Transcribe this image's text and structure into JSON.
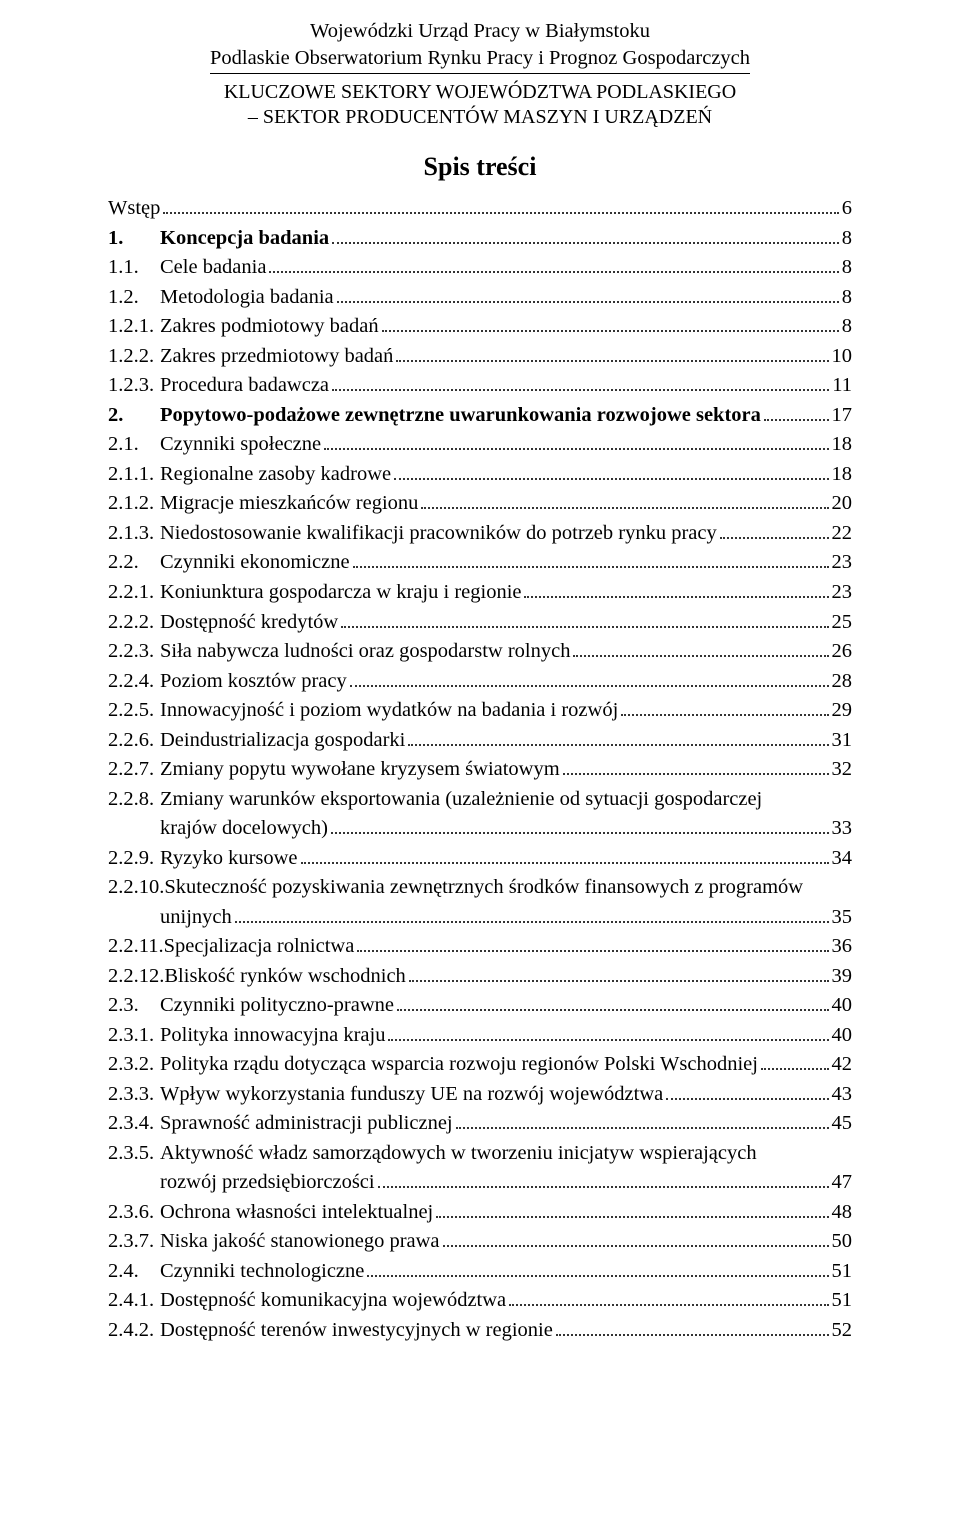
{
  "header": {
    "line1": "Wojewódzki Urząd Pracy w Białymstoku",
    "line2": "Podlaskie Obserwatorium Rynku Pracy i Prognoz Gospodarczych",
    "sub1": "KLUCZOWE SEKTORY WOJEWÓDZTWA PODLASKIEGO",
    "sub2": "– SEKTOR PRODUCENTÓW MASZYN I URZĄDZEŃ"
  },
  "title": "Spis treści",
  "toc": [
    {
      "label": "",
      "text": "Wstęp",
      "page": "6",
      "bold": false
    },
    {
      "label": "1.",
      "text": "Koncepcja badania",
      "page": "8",
      "bold": true
    },
    {
      "label": "1.1.",
      "text": "Cele badania",
      "page": "8",
      "bold": false
    },
    {
      "label": "1.2.",
      "text": "Metodologia badania",
      "page": "8",
      "bold": false
    },
    {
      "label": "1.2.1.",
      "text": "Zakres podmiotowy badań",
      "page": "8",
      "bold": false
    },
    {
      "label": "1.2.2.",
      "text": "Zakres przedmiotowy badań",
      "page": "10",
      "bold": false
    },
    {
      "label": "1.2.3.",
      "text": "Procedura badawcza",
      "page": "11",
      "bold": false
    },
    {
      "label": "2.",
      "text": "Popytowo-podażowe zewnętrzne uwarunkowania rozwojowe sektora",
      "page": "17",
      "bold": true
    },
    {
      "label": "2.1.",
      "text": "Czynniki społeczne",
      "page": "18",
      "bold": false
    },
    {
      "label": "2.1.1.",
      "text": "Regionalne zasoby kadrowe",
      "page": "18",
      "bold": false
    },
    {
      "label": "2.1.2.",
      "text": "Migracje mieszkańców regionu",
      "page": "20",
      "bold": false
    },
    {
      "label": "2.1.3.",
      "text": "Niedostosowanie kwalifikacji pracowników do potrzeb rynku pracy",
      "page": "22",
      "bold": false
    },
    {
      "label": "2.2.",
      "text": "Czynniki ekonomiczne",
      "page": "23",
      "bold": false
    },
    {
      "label": "2.2.1.",
      "text": "Koniunktura gospodarcza w kraju i regionie",
      "page": "23",
      "bold": false
    },
    {
      "label": "2.2.2.",
      "text": "Dostępność kredytów",
      "page": "25",
      "bold": false
    },
    {
      "label": "2.2.3.",
      "text": "Siła nabywcza ludności oraz gospodarstw rolnych",
      "page": "26",
      "bold": false
    },
    {
      "label": "2.2.4.",
      "text": "Poziom kosztów pracy",
      "page": "28",
      "bold": false
    },
    {
      "label": "2.2.5.",
      "text": "Innowacyjność i poziom wydatków na badania i rozwój",
      "page": "29",
      "bold": false
    },
    {
      "label": "2.2.6.",
      "text": "Deindustrializacja gospodarki",
      "page": "31",
      "bold": false
    },
    {
      "label": "2.2.7.",
      "text": "Zmiany popytu wywołane kryzysem światowym",
      "page": "32",
      "bold": false
    },
    {
      "label": "2.2.8.",
      "text": "Zmiany warunków eksportowania (uzależnienie od sytuacji gospodarczej",
      "page": "",
      "bold": false,
      "noleader": true
    },
    {
      "label": "",
      "text": "krajów docelowych)",
      "page": "33",
      "bold": false,
      "continuation": true
    },
    {
      "label": "2.2.9.",
      "text": "Ryzyko kursowe",
      "page": "34",
      "bold": false
    },
    {
      "label": "2.2.10.",
      "text": "Skuteczność pozyskiwania zewnętrznych środków finansowych z programów",
      "page": "",
      "bold": false,
      "noleader": true
    },
    {
      "label": "",
      "text": "unijnych",
      "page": "35",
      "bold": false,
      "continuation": true
    },
    {
      "label": "2.2.11.",
      "text": "Specjalizacja rolnictwa",
      "page": "36",
      "bold": false
    },
    {
      "label": "2.2.12.",
      "text": "Bliskość rynków wschodnich",
      "page": "39",
      "bold": false
    },
    {
      "label": "2.3.",
      "text": "Czynniki polityczno-prawne",
      "page": "40",
      "bold": false
    },
    {
      "label": "2.3.1.",
      "text": "Polityka innowacyjna kraju",
      "page": "40",
      "bold": false
    },
    {
      "label": "2.3.2.",
      "text": "Polityka rządu dotycząca wsparcia rozwoju regionów Polski Wschodniej",
      "page": "42",
      "bold": false
    },
    {
      "label": "2.3.3.",
      "text": "Wpływ wykorzystania funduszy UE na rozwój województwa",
      "page": "43",
      "bold": false
    },
    {
      "label": "2.3.4.",
      "text": "Sprawność administracji publicznej",
      "page": "45",
      "bold": false
    },
    {
      "label": "2.3.5.",
      "text": "Aktywność władz samorządowych w tworzeniu inicjatyw wspierających",
      "page": "",
      "bold": false,
      "noleader": true
    },
    {
      "label": "",
      "text": "rozwój przedsiębiorczości",
      "page": "47",
      "bold": false,
      "continuation": true
    },
    {
      "label": "2.3.6.",
      "text": "Ochrona własności intelektualnej",
      "page": "48",
      "bold": false
    },
    {
      "label": "2.3.7.",
      "text": "Niska jakość stanowionego prawa",
      "page": "50",
      "bold": false
    },
    {
      "label": "2.4.",
      "text": "Czynniki technologiczne",
      "page": "51",
      "bold": false
    },
    {
      "label": "2.4.1.",
      "text": "Dostępność komunikacyjna województwa",
      "page": "51",
      "bold": false
    },
    {
      "label": "2.4.2.",
      "text": "Dostępność terenów inwestycyjnych w regionie",
      "page": "52",
      "bold": false
    }
  ]
}
